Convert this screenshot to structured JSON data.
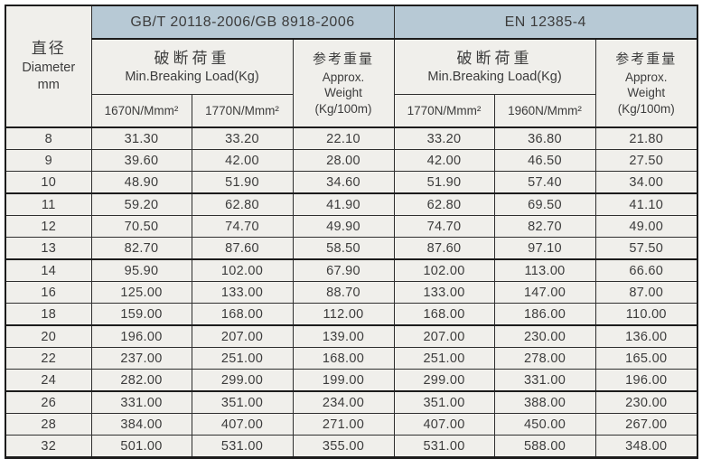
{
  "colors": {
    "band_blue": "#b7c9d5",
    "cell_background": "#f0efeb",
    "border_dark": "#1c1c1c",
    "text": "#3c3c3c"
  },
  "header": {
    "diameter": {
      "zh": "直径",
      "en": "Diameter",
      "unit": "mm"
    },
    "gb": {
      "standard": "GB/T 20118-2006/GB 8918-2006",
      "breaking_zh": "破断荷重",
      "breaking_en": "Min.Breaking Load(Kg)",
      "grades": [
        "1670N/Mmm²",
        "1770N/Mmm²"
      ],
      "weight_zh": "参考重量",
      "weight_en_line1": "Approx.",
      "weight_en_line2": "Weight",
      "weight_en_line3": "(Kg/100m)"
    },
    "en": {
      "standard": "EN 12385-4",
      "breaking_zh": "破断荷重",
      "breaking_en": "Min.Breaking Load(Kg)",
      "grades": [
        "1770N/Mmm²",
        "1960N/Mmm²"
      ],
      "weight_zh": "参考重量",
      "weight_en_line1": "Approx.",
      "weight_en_line2": "Weight",
      "weight_en_line3": "(Kg/100m)"
    }
  },
  "group_starts": [
    0,
    3,
    6,
    9,
    12
  ],
  "rows": [
    {
      "diameter": "8",
      "gb": [
        "31.30",
        "33.20",
        "22.10"
      ],
      "en": [
        "33.20",
        "36.80",
        "21.80"
      ]
    },
    {
      "diameter": "9",
      "gb": [
        "39.60",
        "42.00",
        "28.00"
      ],
      "en": [
        "42.00",
        "46.50",
        "27.50"
      ]
    },
    {
      "diameter": "10",
      "gb": [
        "48.90",
        "51.90",
        "34.60"
      ],
      "en": [
        "51.90",
        "57.40",
        "34.00"
      ]
    },
    {
      "diameter": "11",
      "gb": [
        "59.20",
        "62.80",
        "41.90"
      ],
      "en": [
        "62.80",
        "69.50",
        "41.10"
      ]
    },
    {
      "diameter": "12",
      "gb": [
        "70.50",
        "74.70",
        "49.90"
      ],
      "en": [
        "74.70",
        "82.70",
        "49.00"
      ]
    },
    {
      "diameter": "13",
      "gb": [
        "82.70",
        "87.60",
        "58.50"
      ],
      "en": [
        "87.60",
        "97.10",
        "57.50"
      ]
    },
    {
      "diameter": "14",
      "gb": [
        "95.90",
        "102.00",
        "67.90"
      ],
      "en": [
        "102.00",
        "113.00",
        "66.60"
      ]
    },
    {
      "diameter": "16",
      "gb": [
        "125.00",
        "133.00",
        "88.70"
      ],
      "en": [
        "133.00",
        "147.00",
        "87.00"
      ]
    },
    {
      "diameter": "18",
      "gb": [
        "159.00",
        "168.00",
        "112.00"
      ],
      "en": [
        "168.00",
        "186.00",
        "110.00"
      ]
    },
    {
      "diameter": "20",
      "gb": [
        "196.00",
        "207.00",
        "139.00"
      ],
      "en": [
        "207.00",
        "230.00",
        "136.00"
      ]
    },
    {
      "diameter": "22",
      "gb": [
        "237.00",
        "251.00",
        "168.00"
      ],
      "en": [
        "251.00",
        "278.00",
        "165.00"
      ]
    },
    {
      "diameter": "24",
      "gb": [
        "282.00",
        "299.00",
        "199.00"
      ],
      "en": [
        "299.00",
        "331.00",
        "196.00"
      ]
    },
    {
      "diameter": "26",
      "gb": [
        "331.00",
        "351.00",
        "234.00"
      ],
      "en": [
        "351.00",
        "388.00",
        "230.00"
      ]
    },
    {
      "diameter": "28",
      "gb": [
        "384.00",
        "407.00",
        "271.00"
      ],
      "en": [
        "407.00",
        "450.00",
        "267.00"
      ]
    },
    {
      "diameter": "32",
      "gb": [
        "501.00",
        "531.00",
        "355.00"
      ],
      "en": [
        "531.00",
        "588.00",
        "348.00"
      ]
    }
  ]
}
